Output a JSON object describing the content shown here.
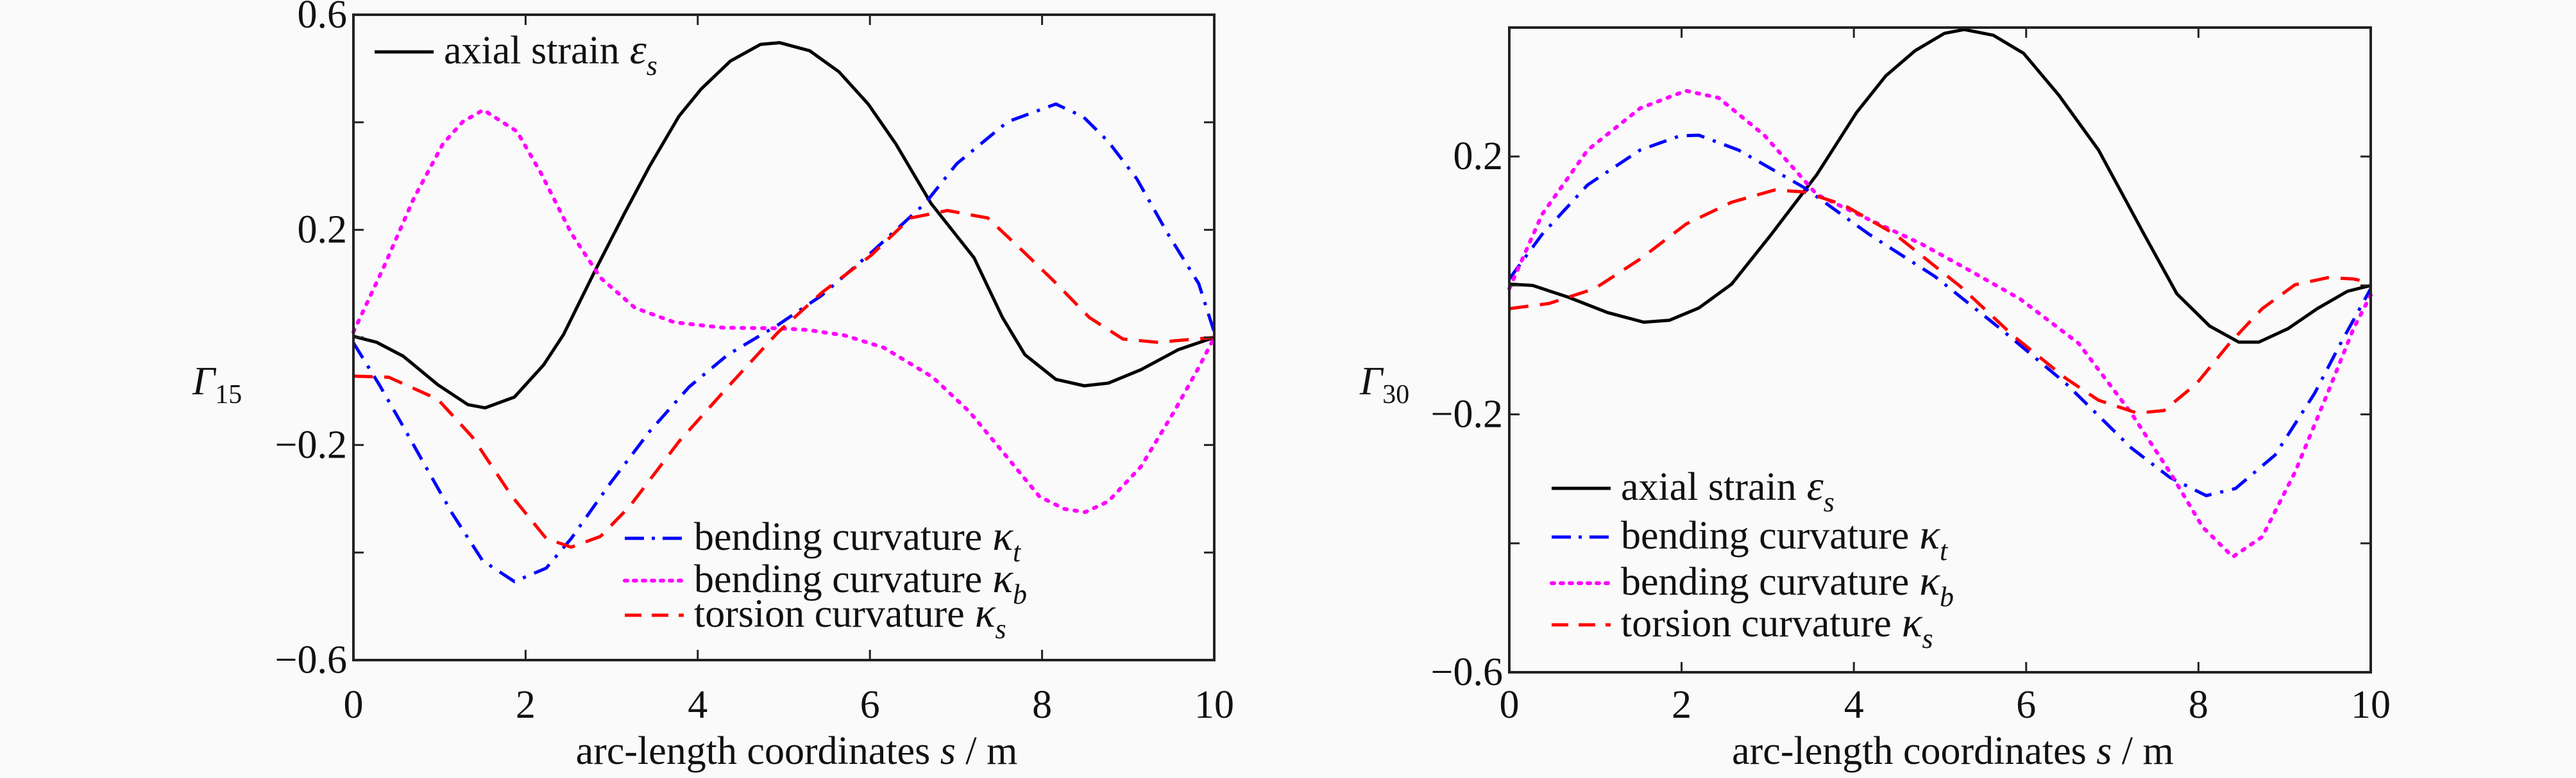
{
  "chart_data": [
    {
      "type": "line",
      "ylabel": {
        "main": "Γ",
        "sub": "15"
      },
      "xlabel": {
        "pre": "arc-length coordinates ",
        "var": "s",
        "post": " / m"
      },
      "xlim": [
        0,
        10
      ],
      "ylim": [
        -0.6,
        0.6
      ],
      "xticks": [
        0,
        2,
        4,
        6,
        8,
        10
      ],
      "xtick_labels": [
        "0",
        "2",
        "4",
        "6",
        "8",
        "10"
      ],
      "yticks": [
        -0.6,
        -0.4,
        -0.2,
        0,
        0.2,
        0.4,
        0.6
      ],
      "ytick_labels": [
        "−0.6",
        "",
        "−0.2",
        "",
        "0.2",
        "",
        "0.6"
      ],
      "grid": false,
      "legend_placement": "split: top-left and bottom-center",
      "series": [
        {
          "name": "axial strain",
          "symbol": "ε",
          "sub": "s",
          "color": "#000000",
          "style": "solid",
          "x": [
            0,
            0.27,
            0.58,
            0.98,
            1.33,
            1.53,
            1.87,
            2.21,
            2.44,
            2.81,
            3.15,
            3.44,
            3.78,
            4.04,
            4.38,
            4.73,
            4.95,
            5.3,
            5.64,
            5.98,
            6.3,
            6.71,
            7.21,
            7.54,
            7.8,
            8.16,
            8.49,
            8.77,
            9.15,
            9.58,
            10
          ],
          "y": [
            0.002,
            -0.009,
            -0.035,
            -0.088,
            -0.125,
            -0.131,
            -0.111,
            -0.051,
            0.005,
            0.125,
            0.231,
            0.318,
            0.411,
            0.462,
            0.514,
            0.545,
            0.548,
            0.533,
            0.494,
            0.434,
            0.36,
            0.249,
            0.148,
            0.037,
            -0.032,
            -0.078,
            -0.09,
            -0.085,
            -0.06,
            -0.023,
            0
          ]
        },
        {
          "name": "bending curvature",
          "symbol": "κ",
          "sub": "t",
          "color": "#0000ff",
          "style": "dashdot",
          "x": [
            0,
            0.3,
            0.58,
            0.87,
            1.15,
            1.5,
            1.87,
            2.24,
            2.53,
            2.98,
            3.44,
            3.9,
            4.35,
            4.93,
            5.44,
            6.01,
            6.64,
            7.01,
            7.6,
            8.16,
            8.48,
            8.77,
            9.1,
            9.46,
            9.82,
            10
          ],
          "y": [
            -0.01,
            -0.088,
            -0.166,
            -0.249,
            -0.328,
            -0.415,
            -0.454,
            -0.429,
            -0.374,
            -0.272,
            -0.175,
            -0.092,
            -0.032,
            0.023,
            0.078,
            0.157,
            0.249,
            0.323,
            0.401,
            0.434,
            0.41,
            0.364,
            0.295,
            0.193,
            0.1,
            0.01
          ]
        },
        {
          "name": "bending curvature",
          "symbol": "κ",
          "sub": "b",
          "color": "#ff00ff",
          "style": "dotted",
          "x": [
            0,
            0.35,
            0.7,
            1.04,
            1.27,
            1.51,
            1.9,
            2.18,
            2.53,
            2.87,
            3.27,
            3.73,
            4.3,
            4.93,
            5.27,
            5.7,
            6.16,
            6.73,
            7.16,
            7.59,
            7.97,
            8.26,
            8.5,
            8.77,
            9.15,
            9.53,
            9.82,
            10
          ],
          "y": [
            0.01,
            0.13,
            0.258,
            0.36,
            0.401,
            0.423,
            0.383,
            0.305,
            0.194,
            0.111,
            0.055,
            0.028,
            0.018,
            0.017,
            0.014,
            0.004,
            -0.019,
            -0.074,
            -0.139,
            -0.222,
            -0.296,
            -0.319,
            -0.325,
            -0.305,
            -0.24,
            -0.139,
            -0.056,
            0
          ]
        },
        {
          "name": "torsion curvature",
          "symbol": "κ",
          "sub": "s",
          "color": "#ff0000",
          "style": "dashed",
          "x": [
            0,
            0.41,
            0.98,
            1.38,
            1.84,
            2.24,
            2.53,
            2.87,
            3.21,
            3.78,
            4.35,
            4.93,
            5.44,
            6.01,
            6.47,
            6.9,
            7.37,
            7.8,
            8.16,
            8.55,
            8.94,
            9.34,
            10
          ],
          "y": [
            -0.072,
            -0.074,
            -0.115,
            -0.185,
            -0.295,
            -0.374,
            -0.39,
            -0.37,
            -0.314,
            -0.194,
            -0.092,
            0.009,
            0.083,
            0.152,
            0.222,
            0.236,
            0.222,
            0.157,
            0.101,
            0.037,
            -0.003,
            -0.009,
            0
          ]
        }
      ]
    },
    {
      "type": "line",
      "ylabel": {
        "main": "Γ",
        "sub": "30"
      },
      "xlabel": {
        "pre": "arc-length coordinates ",
        "var": "s",
        "post": " / m"
      },
      "xlim": [
        0,
        10
      ],
      "ylim": [
        -0.6,
        0.4
      ],
      "xticks": [
        0,
        2,
        4,
        6,
        8,
        10
      ],
      "xtick_labels": [
        "0",
        "2",
        "4",
        "6",
        "8",
        "10"
      ],
      "yticks": [
        -0.6,
        -0.4,
        -0.2,
        0,
        0.2
      ],
      "ytick_labels": [
        "−0.6",
        "",
        "−0.2",
        "",
        "0.2"
      ],
      "grid": false,
      "legend_placement": "bottom-left",
      "series": [
        {
          "name": "axial strain",
          "symbol": "ε",
          "sub": "s",
          "color": "#000000",
          "style": "solid",
          "x": [
            0,
            0.27,
            0.68,
            1.14,
            1.56,
            1.86,
            2.2,
            2.58,
            3.04,
            3.57,
            4.03,
            4.37,
            4.71,
            5.05,
            5.28,
            5.62,
            5.97,
            6.38,
            6.84,
            7.37,
            7.75,
            8.13,
            8.47,
            8.7,
            9.04,
            9.38,
            9.73,
            10
          ],
          "y": [
            0.002,
            0,
            -0.018,
            -0.042,
            -0.057,
            -0.054,
            -0.035,
            0.002,
            0.079,
            0.172,
            0.268,
            0.325,
            0.364,
            0.391,
            0.397,
            0.388,
            0.36,
            0.295,
            0.21,
            0.079,
            -0.013,
            -0.063,
            -0.088,
            -0.088,
            -0.067,
            -0.036,
            -0.009,
            0
          ]
        },
        {
          "name": "bending curvature",
          "symbol": "κ",
          "sub": "t",
          "color": "#0000ff",
          "style": "dashdot",
          "x": [
            0,
            0.38,
            0.91,
            1.52,
            1.98,
            2.2,
            2.66,
            3.42,
            4.18,
            4.94,
            5.7,
            6.46,
            7.22,
            7.67,
            8.09,
            8.43,
            8.89,
            9.35,
            9.65,
            10
          ],
          "y": [
            0.01,
            0.079,
            0.156,
            0.21,
            0.232,
            0.233,
            0.21,
            0.152,
            0.079,
            0.014,
            -0.067,
            -0.152,
            -0.252,
            -0.298,
            -0.326,
            -0.315,
            -0.263,
            -0.167,
            -0.09,
            -0.005
          ]
        },
        {
          "name": "bending curvature",
          "symbol": "κ",
          "sub": "b",
          "color": "#ff00ff",
          "style": "dotted",
          "x": [
            0,
            0.38,
            0.91,
            1.52,
            2.05,
            2.43,
            2.96,
            3.57,
            4.18,
            4.79,
            5.32,
            5.93,
            6.61,
            7.22,
            7.67,
            8.05,
            8.4,
            8.74,
            9.12,
            9.5,
            9.8,
            10
          ],
          "y": [
            -0.005,
            0.11,
            0.21,
            0.275,
            0.302,
            0.291,
            0.233,
            0.141,
            0.102,
            0.064,
            0.025,
            -0.021,
            -0.09,
            -0.198,
            -0.29,
            -0.375,
            -0.421,
            -0.39,
            -0.29,
            -0.167,
            -0.067,
            -0.015
          ]
        },
        {
          "name": "torsion curvature",
          "symbol": "κ",
          "sub": "s",
          "color": "#ff0000",
          "style": "dashed",
          "x": [
            0,
            0.46,
            0.99,
            1.52,
            2.05,
            2.58,
            3.08,
            3.42,
            3.88,
            4.48,
            5.24,
            5.85,
            6.46,
            6.84,
            7.29,
            7.6,
            7.98,
            8.36,
            8.74,
            9.12,
            9.5,
            9.8,
            10
          ],
          "y": [
            -0.036,
            -0.028,
            -0.005,
            0.041,
            0.095,
            0.129,
            0.148,
            0.145,
            0.125,
            0.079,
            -0.002,
            -0.078,
            -0.144,
            -0.178,
            -0.198,
            -0.194,
            -0.152,
            -0.09,
            -0.036,
            0.001,
            0.012,
            0.01,
            0.004
          ]
        }
      ]
    }
  ]
}
